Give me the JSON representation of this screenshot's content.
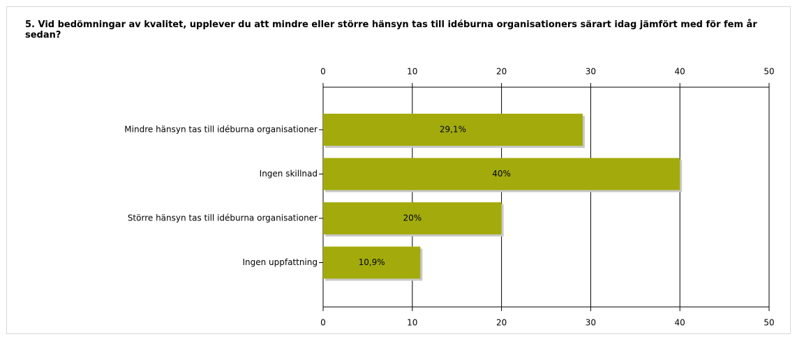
{
  "chart_data": {
    "type": "bar",
    "orientation": "horizontal",
    "title": "5. Vid bedömningar av kvalitet, upplever du att mindre eller större hänsyn tas till idéburna organisationers särart idag jämfört med för fem år sedan?",
    "categories": [
      "Mindre hänsyn tas till idéburna organisationer",
      "Ingen skillnad",
      "Större hänsyn tas till idéburna organisationer",
      "Ingen uppfattning"
    ],
    "values": [
      29.1,
      40,
      20,
      10.9
    ],
    "value_labels": [
      "29,1%",
      "40%",
      "20%",
      "10,9%"
    ],
    "color": "#a3ab0c",
    "xlim": [
      0,
      50
    ],
    "xticks": [
      0,
      10,
      20,
      30,
      40,
      50
    ],
    "grid": true
  }
}
